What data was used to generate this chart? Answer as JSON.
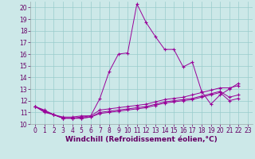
{
  "xlabel": "Windchill (Refroidissement éolien,°C)",
  "background_color": "#cce8e8",
  "grid_color": "#99cccc",
  "line_color": "#990099",
  "xlim": [
    -0.5,
    23.5
  ],
  "ylim": [
    10,
    20.5
  ],
  "xticks": [
    0,
    1,
    2,
    3,
    4,
    5,
    6,
    7,
    8,
    9,
    10,
    11,
    12,
    13,
    14,
    15,
    16,
    17,
    18,
    19,
    20,
    21,
    22,
    23
  ],
  "yticks": [
    10,
    11,
    12,
    13,
    14,
    15,
    16,
    17,
    18,
    19,
    20
  ],
  "x_data": [
    0,
    1,
    2,
    3,
    4,
    5,
    6,
    7,
    8,
    9,
    10,
    11,
    12,
    13,
    14,
    15,
    16,
    17,
    18,
    19,
    20,
    21,
    22
  ],
  "series": [
    [
      11.5,
      11.2,
      10.8,
      10.6,
      10.6,
      10.7,
      10.7,
      12.2,
      14.5,
      16.0,
      16.1,
      20.3,
      18.7,
      17.5,
      16.4,
      16.4,
      14.9,
      15.3,
      12.8,
      11.7,
      12.5,
      13.0,
      13.5
    ],
    [
      11.5,
      11.1,
      10.8,
      10.5,
      10.5,
      10.6,
      10.7,
      11.2,
      11.3,
      11.4,
      11.5,
      11.6,
      11.7,
      11.9,
      12.1,
      12.2,
      12.3,
      12.5,
      12.7,
      12.9,
      13.1,
      13.1,
      13.3
    ],
    [
      11.5,
      11.1,
      10.8,
      10.5,
      10.5,
      10.5,
      10.6,
      11.0,
      11.1,
      11.2,
      11.3,
      11.4,
      11.5,
      11.7,
      11.9,
      12.0,
      12.1,
      12.2,
      12.4,
      12.6,
      12.8,
      12.3,
      12.5
    ],
    [
      11.5,
      11.0,
      10.8,
      10.5,
      10.5,
      10.5,
      10.6,
      10.9,
      11.0,
      11.1,
      11.2,
      11.3,
      11.4,
      11.6,
      11.8,
      11.9,
      12.0,
      12.1,
      12.3,
      12.5,
      12.7,
      12.0,
      12.2
    ]
  ],
  "tick_fontsize": 5.5,
  "xlabel_fontsize": 6.5
}
